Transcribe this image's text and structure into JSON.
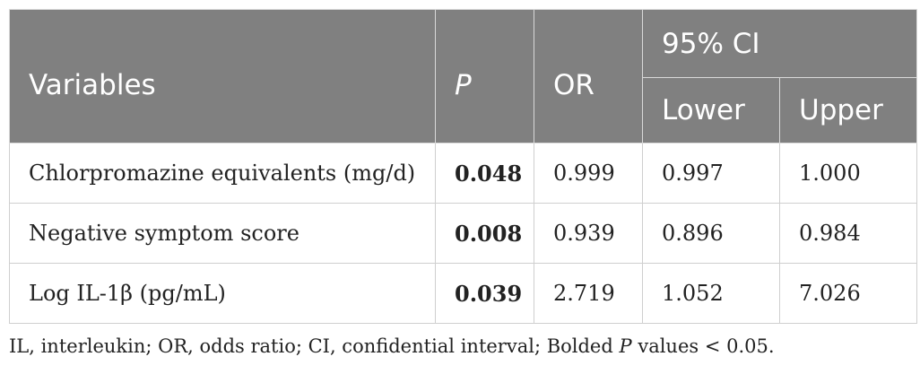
{
  "table": {
    "headers": {
      "variables": "Variables",
      "p": "P",
      "or": "OR",
      "ci": "95% CI",
      "lower": "Lower",
      "upper": "Upper"
    },
    "rows": [
      {
        "variable": "Chlorpromazine equivalents (mg/d)",
        "p": "0.048",
        "or": "0.999",
        "lower": "0.997",
        "upper": "1.000"
      },
      {
        "variable": "Negative symptom score",
        "p": "0.008",
        "or": "0.939",
        "lower": "0.896",
        "upper": "0.984"
      },
      {
        "variable": "Log IL-1β (pg/mL)",
        "p": "0.039",
        "or": "2.719",
        "lower": "1.052",
        "upper": "7.026"
      }
    ]
  },
  "footnote": {
    "before_p": "IL, interleukin; OR, odds ratio; CI, confidential interval; Bolded",
    "p_italic": "P",
    "after_p": "values < 0.05."
  }
}
